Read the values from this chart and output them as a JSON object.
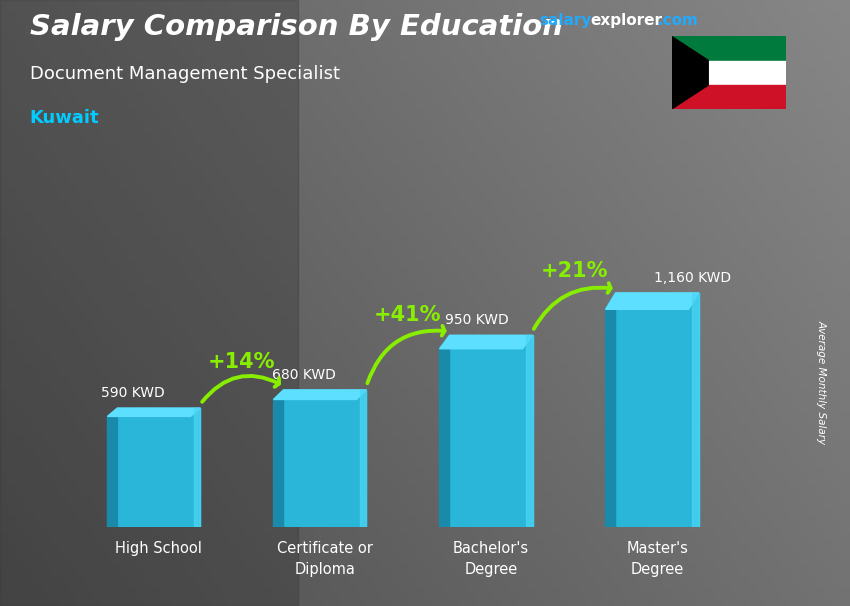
{
  "title": "Salary Comparison By Education",
  "subtitle": "Document Management Specialist",
  "country": "Kuwait",
  "categories": [
    "High School",
    "Certificate or\nDiploma",
    "Bachelor's\nDegree",
    "Master's\nDegree"
  ],
  "values": [
    590,
    680,
    950,
    1160
  ],
  "labels": [
    "590 KWD",
    "680 KWD",
    "950 KWD",
    "1,160 KWD"
  ],
  "pct_labels": [
    "+14%",
    "+41%",
    "+21%"
  ],
  "bar_color_main": "#29b6d8",
  "bar_color_light": "#4dd6f5",
  "bar_color_dark": "#1a8aaa",
  "bar_color_top": "#5de0ff",
  "bg_color": "#606060",
  "title_color": "#ffffff",
  "subtitle_color": "#ffffff",
  "country_color": "#00ccff",
  "label_color": "#ffffff",
  "pct_color": "#88ee00",
  "ylabel": "Average Monthly Salary",
  "ylim_max": 1500,
  "bar_width": 0.5,
  "salary_color": "#00aaff",
  "explorer_color": "#ffffff",
  "com_color": "#00aaff",
  "label_offsets_left": [
    true,
    true,
    true,
    false
  ],
  "arrow_rad": [
    -0.45,
    -0.42,
    -0.38
  ]
}
